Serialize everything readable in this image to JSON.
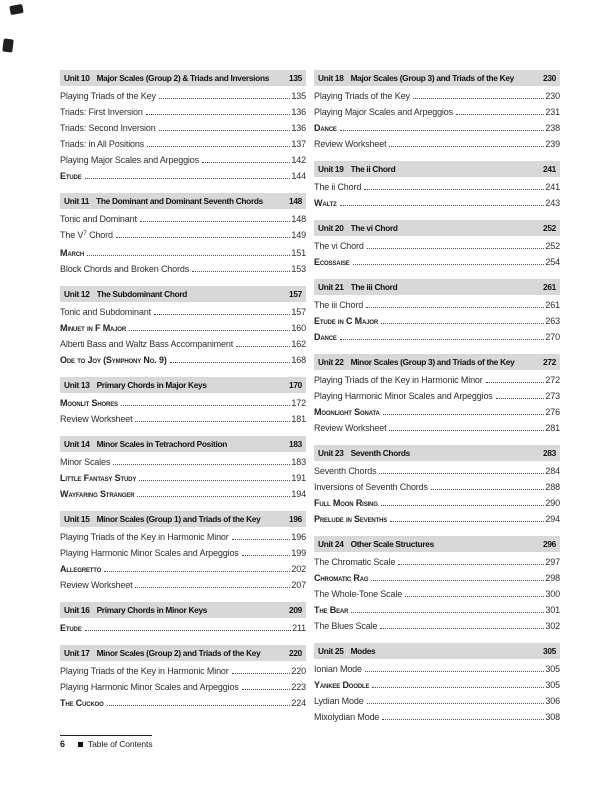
{
  "footer": {
    "page_number": "6",
    "label": "Table of Contents"
  },
  "colors": {
    "unit_header_bg": "#d8d8d8",
    "body_text": "#2e2e2e",
    "header_text": "#121212",
    "leader_dots": "#4d4d4d",
    "page_bg": "#ffffff"
  },
  "columns": [
    {
      "sections": [
        {
          "unit": "Unit 10",
          "title": "Major Scales (Group 2) & Triads and Inversions",
          "page": "135",
          "items": [
            {
              "text": "Playing Triads of the Key",
              "page": "135"
            },
            {
              "text": "Triads: First Inversion",
              "page": "136"
            },
            {
              "text": "Triads: Second Inversion",
              "page": "136"
            },
            {
              "text": "Triads: in All Positions",
              "page": "137"
            },
            {
              "text": "Playing Major Scales and Arpeggios",
              "page": "142"
            },
            {
              "text": "Etude",
              "smallcaps": true,
              "page": "144"
            }
          ]
        },
        {
          "unit": "Unit 11",
          "title": "The Dominant and Dominant Seventh Chords",
          "page": "148",
          "items": [
            {
              "text": "Tonic and Dominant",
              "page": "148"
            },
            {
              "parts": [
                {
                  "t": "The V"
                },
                {
                  "t": "7",
                  "sup": true
                },
                {
                  "t": " Chord"
                }
              ],
              "page": "149"
            },
            {
              "text": "March",
              "smallcaps": true,
              "page": "151"
            },
            {
              "text": "Block Chords and Broken Chords",
              "page": "153"
            }
          ]
        },
        {
          "unit": "Unit 12",
          "title": "The Subdominant Chord",
          "page": "157",
          "items": [
            {
              "text": "Tonic and Subdominant",
              "page": "157"
            },
            {
              "text": "Minuet in F Major",
              "smallcaps": true,
              "page": "160"
            },
            {
              "text": "Alberti Bass and Waltz Bass Accompaniment",
              "page": "162"
            },
            {
              "text": "Ode to Joy (Symphony No. 9)",
              "smallcaps": true,
              "page": "168"
            }
          ]
        },
        {
          "unit": "Unit 13",
          "title": "Primary Chords in Major Keys",
          "page": "170",
          "items": [
            {
              "text": "Moonlit Shores",
              "smallcaps": true,
              "page": "172"
            },
            {
              "text": "Review Worksheet",
              "page": "181"
            }
          ]
        },
        {
          "unit": "Unit 14",
          "title": "Minor Scales in Tetrachord Position",
          "page": "183",
          "items": [
            {
              "text": "Minor Scales",
              "page": "183"
            },
            {
              "text": "Little Fantasy Study",
              "smallcaps": true,
              "page": "191"
            },
            {
              "text": "Wayfaring Stranger",
              "smallcaps": true,
              "page": "194"
            }
          ]
        },
        {
          "unit": "Unit 15",
          "title": "Minor Scales (Group 1) and Triads of the Key",
          "page": "196",
          "items": [
            {
              "text": "Playing Triads of the Key in Harmonic Minor",
              "page": "196"
            },
            {
              "text": "Playing Harmonic Minor Scales and Arpeggios",
              "page": "199"
            },
            {
              "text": "Allegretto",
              "smallcaps": true,
              "page": "202"
            },
            {
              "text": "Review Worksheet",
              "page": "207"
            }
          ]
        },
        {
          "unit": "Unit 16",
          "title": "Primary Chords in Minor Keys",
          "page": "209",
          "items": [
            {
              "text": "Etude",
              "smallcaps": true,
              "page": "211"
            }
          ]
        },
        {
          "unit": "Unit 17",
          "title": "Minor Scales (Group 2) and Triads of the Key",
          "page": "220",
          "items": [
            {
              "text": "Playing Triads of the Key in Harmonic Minor",
              "page": "220"
            },
            {
              "text": "Playing Harmonic Minor Scales and Arpeggios",
              "page": "223"
            },
            {
              "text": "The Cuckoo",
              "smallcaps": true,
              "page": "224"
            }
          ]
        }
      ]
    },
    {
      "sections": [
        {
          "unit": "Unit 18",
          "title": "Major Scales (Group 3) and Triads of the Key",
          "page": "230",
          "items": [
            {
              "text": "Playing Triads of the Key",
              "page": "230"
            },
            {
              "text": "Playing Major Scales and Arpeggios",
              "page": "231"
            },
            {
              "text": "Dance",
              "smallcaps": true,
              "page": "238"
            },
            {
              "text": "Review Worksheet",
              "page": "239"
            }
          ]
        },
        {
          "unit": "Unit 19",
          "title": "The ii Chord",
          "page": "241",
          "items": [
            {
              "text": "The ii Chord",
              "page": "241"
            },
            {
              "text": "Waltz",
              "smallcaps": true,
              "page": "243"
            }
          ]
        },
        {
          "unit": "Unit 20",
          "title": "The vi Chord",
          "page": "252",
          "items": [
            {
              "text": "The vi Chord",
              "page": "252"
            },
            {
              "text": "Ecossaise",
              "smallcaps": true,
              "page": "254"
            }
          ]
        },
        {
          "unit": "Unit 21",
          "title": "The iii Chord",
          "page": "261",
          "items": [
            {
              "text": "The iii Chord",
              "page": "261"
            },
            {
              "text": "Etude in C Major",
              "smallcaps": true,
              "page": "263"
            },
            {
              "text": "Dance",
              "smallcaps": true,
              "page": "270"
            }
          ]
        },
        {
          "unit": "Unit 22",
          "title": "Minor Scales (Group 3) and Triads of the Key",
          "page": "272",
          "items": [
            {
              "text": "Playing Triads of the Key in Harmonic Minor",
              "page": "272"
            },
            {
              "text": "Playing Harmonic Minor Scales and Arpeggios",
              "page": "273"
            },
            {
              "text": "Moonlight Sonata",
              "smallcaps": true,
              "page": "276"
            },
            {
              "text": "Review Worksheet",
              "page": "281"
            }
          ]
        },
        {
          "unit": "Unit 23",
          "title": "Seventh Chords",
          "page": "283",
          "items": [
            {
              "text": "Seventh Chords",
              "page": "284"
            },
            {
              "text": "Inversions of Seventh Chords",
              "page": "288"
            },
            {
              "text": "Full Moon Rising",
              "smallcaps": true,
              "page": "290"
            },
            {
              "text": "Prelude in Sevenths",
              "smallcaps": true,
              "page": "294"
            }
          ]
        },
        {
          "unit": "Unit 24",
          "title": "Other Scale Structures",
          "page": "296",
          "items": [
            {
              "text": "The Chromatic Scale",
              "page": "297"
            },
            {
              "text": "Chromatic Rag",
              "smallcaps": true,
              "page": "298"
            },
            {
              "text": "The Whole-Tone Scale",
              "page": "300"
            },
            {
              "text": "The Bear",
              "smallcaps": true,
              "page": "301"
            },
            {
              "text": "The Blues Scale",
              "page": "302"
            }
          ]
        },
        {
          "unit": "Unit 25",
          "title": "Modes",
          "page": "305",
          "items": [
            {
              "text": "Ionian Mode",
              "page": "305"
            },
            {
              "text": "Yankee Doodle",
              "smallcaps": true,
              "page": "305"
            },
            {
              "text": "Lydian Mode",
              "page": "306"
            },
            {
              "text": "Mixolydian Mode",
              "page": "308"
            }
          ]
        }
      ]
    }
  ]
}
